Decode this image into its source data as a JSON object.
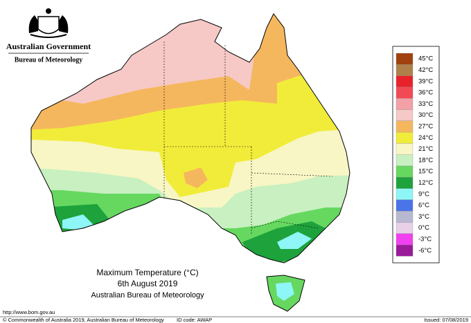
{
  "header": {
    "government": "Australian Government",
    "agency": "Bureau of Meteorology"
  },
  "map": {
    "title": "Maximum Temperature (°C)",
    "date": "6th August 2019",
    "source": "Australian Bureau of Meteorology"
  },
  "legend": [
    {
      "label": "45°C",
      "color": "#a0410f"
    },
    {
      "label": "42°C",
      "color": "#b0804a"
    },
    {
      "label": "39°C",
      "color": "#e8222a"
    },
    {
      "label": "36°C",
      "color": "#f24a54"
    },
    {
      "label": "33°C",
      "color": "#f3a0a6"
    },
    {
      "label": "30°C",
      "color": "#f6c8c6"
    },
    {
      "label": "27°C",
      "color": "#f5b75e"
    },
    {
      "label": "24°C",
      "color": "#f1ec3a"
    },
    {
      "label": "21°C",
      "color": "#f8f6c4"
    },
    {
      "label": "18°C",
      "color": "#c8f0c0"
    },
    {
      "label": "15°C",
      "color": "#66d860"
    },
    {
      "label": "12°C",
      "color": "#1ea23c"
    },
    {
      "label": "9°C",
      "color": "#8ef6f6"
    },
    {
      "label": "6°C",
      "color": "#4a74e8"
    },
    {
      "label": "3°C",
      "color": "#b8b8d0"
    },
    {
      "label": "0°C",
      "color": "#e8d0e8"
    },
    {
      "label": "-3°C",
      "color": "#f040f0"
    },
    {
      "label": "-6°C",
      "color": "#9a1a9a"
    }
  ],
  "footer": {
    "url": "http://www.bom.gov.au",
    "copyright": "© Commonwealth of Australia 2019, Australian Bureau of Meteorology",
    "id_code": "ID code: AWAP",
    "issued": "Issued: 07/08/2019"
  }
}
